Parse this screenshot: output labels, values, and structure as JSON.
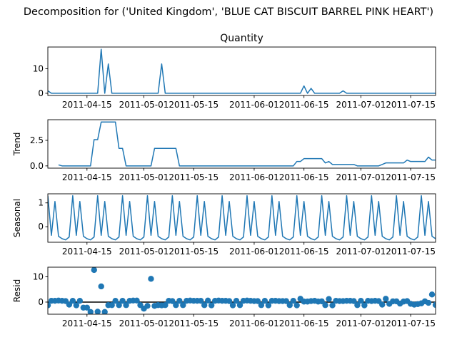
{
  "figure": {
    "suptitle": "Decomposition for ('United Kingdom', 'BLUE CAT BISCUIT BARREL PINK HEART')"
  },
  "chart_data": [
    {
      "type": "line",
      "panel": "observed",
      "title": "Quantity",
      "ylabel": "",
      "ylim": [
        -0.9,
        18.9
      ],
      "yticks": [
        "0",
        "10"
      ],
      "yticks_values": [
        0,
        10
      ],
      "color": "#1f77b4",
      "x_start": "2011-04-04",
      "x_step_days": 1,
      "x_range": [
        "2011-04-04",
        "2011-07-22"
      ],
      "xticks": [
        "2011-04-15",
        "2011-05-01",
        "2011-05-15",
        "2011-06-01",
        "2011-06-15",
        "2011-07-01",
        "2011-07-15"
      ],
      "values": [
        1,
        0,
        0,
        0,
        0,
        0,
        0,
        0,
        0,
        0,
        0,
        0,
        0,
        0,
        0,
        18,
        0,
        12,
        0,
        0,
        0,
        0,
        0,
        0,
        0,
        0,
        0,
        0,
        0,
        0,
        0,
        0,
        12,
        0,
        0,
        0,
        0,
        0,
        0,
        0,
        0,
        0,
        0,
        0,
        0,
        0,
        0,
        0,
        0,
        0,
        0,
        0,
        0,
        0,
        0,
        0,
        0,
        0,
        0,
        0,
        0,
        0,
        0,
        0,
        0,
        0,
        0,
        0,
        0,
        0,
        0,
        0,
        3,
        0,
        2,
        0,
        0,
        0,
        0,
        0,
        0,
        0,
        0,
        1,
        0,
        0,
        0,
        0,
        0,
        0,
        0,
        0,
        0,
        0,
        0,
        0,
        0,
        0,
        0,
        0,
        0,
        0,
        0,
        0,
        0,
        0,
        0,
        0,
        0,
        0,
        0,
        0,
        0,
        0,
        0,
        0,
        0,
        0,
        0,
        0,
        0,
        0,
        0,
        0,
        0,
        0,
        0,
        0,
        0,
        0,
        0,
        0,
        0,
        0,
        1,
        1,
        0,
        0,
        0,
        0,
        2,
        0,
        1,
        0,
        0,
        0,
        3,
        0,
        0,
        0,
        1,
        0,
        1,
        0,
        0,
        7
      ]
    },
    {
      "type": "line",
      "panel": "trend",
      "ylabel": "Trend",
      "ylim": [
        -0.22,
        4.52
      ],
      "yticks": [
        "0.0",
        "2.5"
      ],
      "yticks_values": [
        0,
        2.5
      ],
      "color": "#1f77b4",
      "x_start": "2011-04-07",
      "x_step_days": 1,
      "values": [
        0.1,
        0,
        0,
        0,
        0,
        0,
        0,
        0,
        0,
        0,
        2.57,
        2.57,
        4.29,
        4.29,
        4.29,
        4.29,
        4.29,
        1.71,
        1.71,
        0,
        0,
        0,
        0,
        0,
        0,
        0,
        0,
        1.71,
        1.71,
        1.71,
        1.71,
        1.71,
        1.71,
        1.71,
        0,
        0,
        0,
        0,
        0,
        0,
        0,
        0,
        0,
        0,
        0,
        0,
        0,
        0,
        0,
        0,
        0,
        0,
        0,
        0,
        0,
        0,
        0,
        0,
        0,
        0,
        0,
        0,
        0,
        0,
        0,
        0,
        0,
        0.43,
        0.43,
        0.71,
        0.71,
        0.71,
        0.71,
        0.71,
        0.71,
        0.29,
        0.43,
        0.14,
        0.14,
        0.14,
        0.14,
        0.14,
        0.14,
        0.14,
        0,
        0,
        0,
        0,
        0,
        0,
        0,
        0.14,
        0.29,
        0.29,
        0.29,
        0.29,
        0.29,
        0.29,
        0.57,
        0.43,
        0.43,
        0.43,
        0.43,
        0.43,
        0.86,
        0.57,
        0.57,
        0.43,
        0.57,
        0.57,
        0.71,
        0.29,
        0.29,
        1.29
      ]
    },
    {
      "type": "line",
      "panel": "seasonal",
      "ylabel": "Seasonal",
      "ylim": [
        -0.65,
        1.38
      ],
      "yticks": [
        "0",
        "1"
      ],
      "yticks_values": [
        0,
        1
      ],
      "color": "#1f77b4",
      "x_start": "2011-04-04",
      "x_step_days": 1,
      "period_pattern": [
        -0.36,
        1.06,
        -0.4,
        -0.5,
        -0.55,
        -0.43,
        1.3
      ],
      "pattern_offset": 6
    },
    {
      "type": "scatter",
      "panel": "resid",
      "ylabel": "Resid",
      "ylim": [
        -4.8,
        13.8
      ],
      "yticks": [
        "0",
        "10"
      ],
      "yticks_values": [
        0,
        10
      ],
      "color": "#1f77b4",
      "baseline": 0,
      "x_start": "2011-04-04",
      "x_step_days": 1,
      "values": [
        -1.3,
        0.5,
        0.5,
        0.6,
        0.5,
        0.4,
        -1,
        0.5,
        -1.3,
        0.5,
        -2.2,
        -2.2,
        -3.9,
        12.7,
        -3.8,
        6.2,
        -3.9,
        -1.2,
        -1.2,
        0.5,
        -1.2,
        0.5,
        -1.2,
        0.5,
        0.6,
        0.6,
        -1.2,
        -2.6,
        -1.5,
        9.2,
        -1.5,
        -1.2,
        -1.3,
        -1.2,
        0.5,
        0.4,
        -1.2,
        0.5,
        -1.2,
        0.5,
        0.6,
        0.5,
        0.5,
        0.5,
        -1.2,
        0.6,
        -1.3,
        0.5,
        0.6,
        0.5,
        0.5,
        0.4,
        -1.3,
        0.5,
        -1.2,
        0.5,
        0.6,
        0.5,
        0.4,
        0.4,
        -1.2,
        0.5,
        -1.3,
        0.5,
        0.5,
        0.4,
        0.4,
        0.4,
        -1.2,
        0.5,
        -1.3,
        1.3,
        0.2,
        0.2,
        0.4,
        0.5,
        0.2,
        0.3,
        -1.2,
        1.2,
        -1.3,
        0.5,
        0.4,
        0.4,
        0.5,
        0.5,
        0.4,
        -1.2,
        0.5,
        -1.3,
        0.5,
        0.4,
        0.5,
        0.4,
        -1,
        1.3,
        -0.7,
        0.3,
        0.3,
        -0.6,
        0.2,
        0.4,
        -0.7,
        -1,
        -0.8,
        -0.5,
        0.3,
        -0.3,
        3,
        -1.1,
        0.3,
        -2,
        1.2,
        0.2,
        0.2
      ]
    }
  ]
}
